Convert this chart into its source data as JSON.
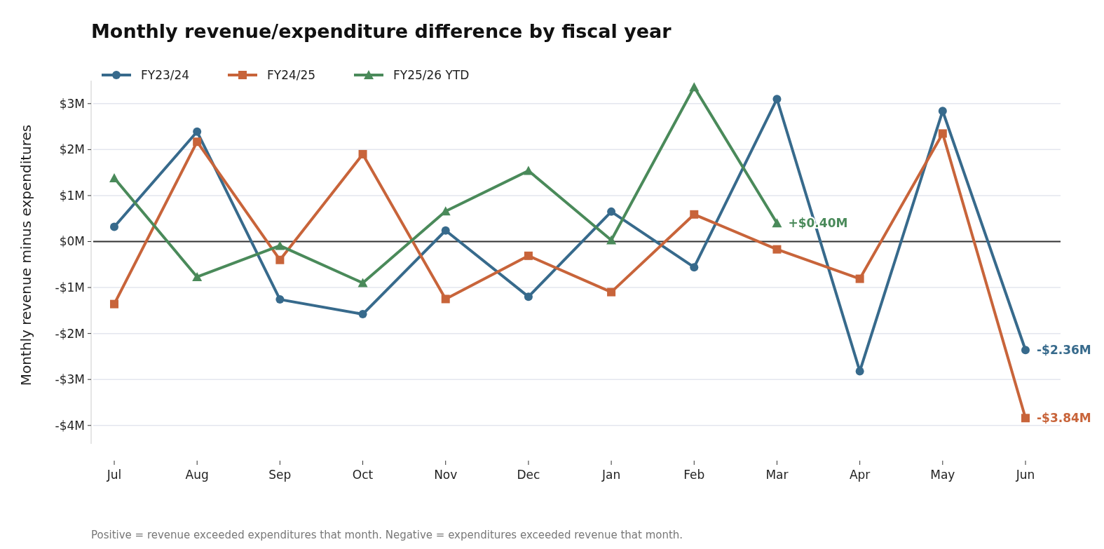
{
  "chart_data": {
    "type": "line",
    "title": "Monthly revenue/expenditure difference by fiscal year",
    "ylabel": "Monthly revenue minus expenditures",
    "categories": [
      "Jul",
      "Aug",
      "Sep",
      "Oct",
      "Nov",
      "Dec",
      "Jan",
      "Feb",
      "Mar",
      "Apr",
      "May",
      "Jun"
    ],
    "series": [
      {
        "name": "FY23/24",
        "color": "#376a8c",
        "marker": "circle",
        "values": [
          0.32,
          2.39,
          -1.26,
          -1.58,
          0.24,
          -1.2,
          0.65,
          -0.56,
          3.1,
          -2.82,
          2.84,
          -2.36
        ],
        "value_labels": [
          null,
          null,
          null,
          null,
          null,
          null,
          null,
          null,
          null,
          null,
          null,
          "-$2.36M"
        ]
      },
      {
        "name": "FY24/25",
        "color": "#c8643a",
        "marker": "square",
        "values": [
          -1.36,
          2.17,
          -0.4,
          1.9,
          -1.25,
          -0.31,
          -1.1,
          0.59,
          -0.17,
          -0.81,
          2.35,
          -3.84
        ],
        "value_labels": [
          null,
          null,
          null,
          null,
          null,
          null,
          null,
          null,
          null,
          null,
          null,
          "-$3.84M"
        ]
      },
      {
        "name": "FY25/26 YTD",
        "color": "#4a8a5a",
        "marker": "triangle",
        "values": [
          1.38,
          -0.77,
          -0.09,
          -0.9,
          0.66,
          1.54,
          0.03,
          3.36,
          0.4,
          null,
          null,
          null
        ],
        "value_labels": [
          null,
          null,
          null,
          null,
          null,
          null,
          null,
          null,
          "+$0.40M",
          null,
          null,
          null
        ]
      }
    ],
    "ylim": [
      -4.4,
      3.5
    ],
    "yticks": [
      {
        "value": -4,
        "label": "-$4M"
      },
      {
        "value": -3,
        "label": "-$3M"
      },
      {
        "value": -2,
        "label": "-$2M"
      },
      {
        "value": -1,
        "label": "-$1M"
      },
      {
        "value": 0,
        "label": "$0M"
      },
      {
        "value": 1,
        "label": "$1M"
      },
      {
        "value": 2,
        "label": "$2M"
      },
      {
        "value": 3,
        "label": "$3M"
      }
    ],
    "grid": "y",
    "legend": "top left",
    "line_style": "solid",
    "ref_lines": [
      {
        "axis": "y",
        "value": 0,
        "label": null,
        "color": "#333333"
      }
    ],
    "annotations": [
      "Positive = revenue exceeded expenditures that month. Negative = expenditures exceeded revenue that month."
    ]
  }
}
